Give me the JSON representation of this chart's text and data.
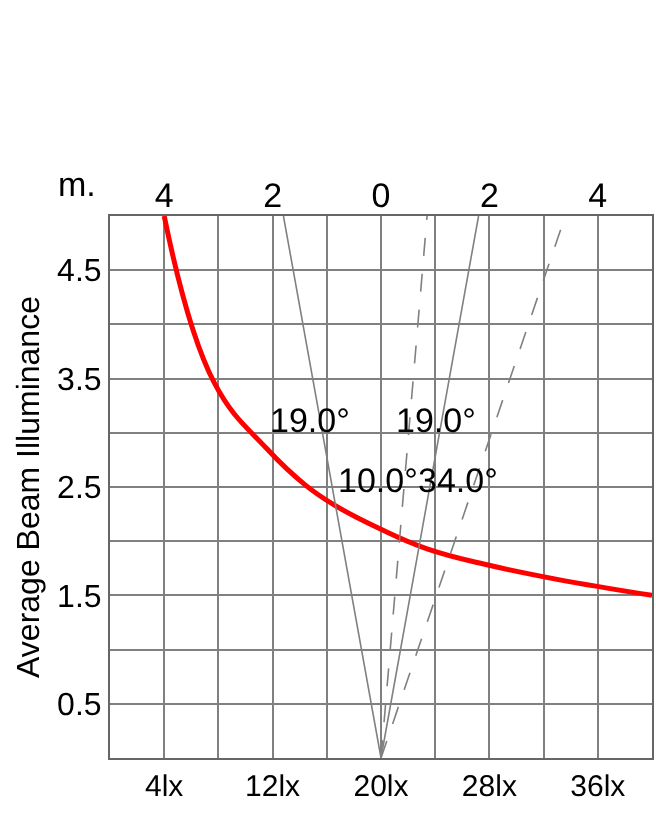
{
  "chart_data": {
    "type": "line",
    "ylabel": "Average Beam Illuminance",
    "x2label": "m.",
    "x": [
      4,
      7.7,
      11.6,
      14.4,
      16.6,
      20,
      23.4,
      27.9,
      32.9,
      40
    ],
    "series": [
      {
        "color": "#ff0000",
        "values": [
          5.0,
          3.46,
          2.85,
          2.52,
          2.33,
          2.11,
          1.93,
          1.78,
          1.65,
          1.5
        ]
      },
      {
        "color": "#808080",
        "axis": "x2",
        "x": [
          -1.8,
          0,
          1.8
        ],
        "values": [
          5,
          0,
          5
        ],
        "line_style": "solid"
      },
      {
        "color": "#808080",
        "axis": "x2",
        "x": [
          0,
          0.85
        ],
        "values": [
          0,
          5
        ],
        "line_style": "dashed"
      },
      {
        "color": "#808080",
        "axis": "x2",
        "x": [
          0,
          3.4
        ],
        "values": [
          0,
          5
        ],
        "line_style": "dashed"
      }
    ],
    "xlim": [
      0,
      40
    ],
    "xticks": [
      {
        "value": 0,
        "label": null
      },
      {
        "value": 4,
        "label": "4lx"
      },
      {
        "value": 8,
        "label": null
      },
      {
        "value": 12,
        "label": "12lx"
      },
      {
        "value": 16,
        "label": null
      },
      {
        "value": 20,
        "label": "20lx"
      },
      {
        "value": 24,
        "label": null
      },
      {
        "value": 28,
        "label": "28lx"
      },
      {
        "value": 32,
        "label": null
      },
      {
        "value": 36,
        "label": "36lx"
      },
      {
        "value": 40,
        "label": null
      }
    ],
    "x2lim": [
      -5,
      5
    ],
    "x2ticks": [
      {
        "value": -4,
        "label": "4"
      },
      {
        "value": -2,
        "label": "2"
      },
      0,
      2,
      4
    ],
    "ylim": [
      0,
      5
    ],
    "yticks": [
      {
        "value": 0,
        "label": null
      },
      0.5,
      {
        "value": 1,
        "label": null
      },
      1.5,
      {
        "value": 2,
        "label": null
      },
      2.5,
      {
        "value": 3,
        "label": null
      },
      3.5,
      {
        "value": 4,
        "label": null
      },
      4.5,
      {
        "value": 5,
        "label": null
      }
    ],
    "grid": true,
    "marker": "none",
    "annotations": [
      "19.0°",
      "19.0°",
      "10.0°",
      "34.0°"
    ]
  }
}
